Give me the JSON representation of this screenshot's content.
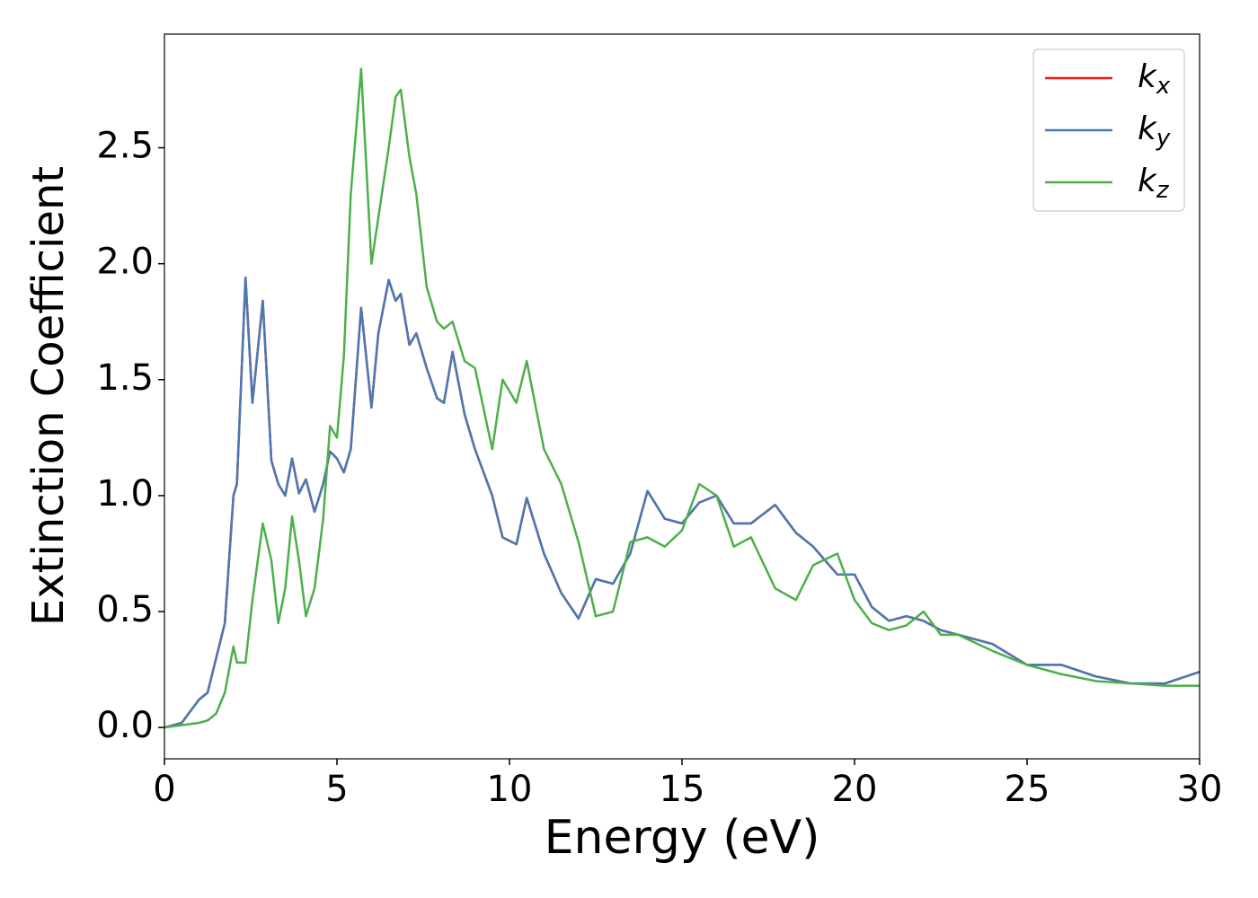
{
  "chart_data": {
    "type": "line",
    "xlabel": "Energy (eV)",
    "ylabel": "Extinction Coefficient",
    "x": [
      0,
      0.5,
      1,
      1.25,
      1.5,
      1.75,
      2,
      2.1,
      2.35,
      2.55,
      2.85,
      3.1,
      3.3,
      3.5,
      3.7,
      3.9,
      4.1,
      4.35,
      4.6,
      4.8,
      5,
      5.2,
      5.4,
      5.7,
      6,
      6.2,
      6.5,
      6.7,
      6.85,
      7.1,
      7.3,
      7.6,
      7.9,
      8.1,
      8.35,
      8.7,
      9,
      9.5,
      9.8,
      10.2,
      10.5,
      11,
      11.5,
      12,
      12.5,
      13,
      13.5,
      14,
      14.5,
      15,
      15.5,
      16,
      16.5,
      17,
      17.7,
      18.3,
      18.8,
      19.5,
      20,
      20.5,
      21,
      21.5,
      22,
      22.5,
      23,
      24,
      25,
      26,
      27,
      28,
      29,
      30
    ],
    "series": [
      {
        "name": "k_x",
        "color": "#e41a1c",
        "values": [
          0,
          0.02,
          0.12,
          0.15,
          0.3,
          0.45,
          1.0,
          1.05,
          1.94,
          1.4,
          1.84,
          1.15,
          1.05,
          1.0,
          1.16,
          1.01,
          1.07,
          0.93,
          1.05,
          1.19,
          1.16,
          1.1,
          1.2,
          1.81,
          1.38,
          1.7,
          1.93,
          1.84,
          1.87,
          1.65,
          1.7,
          1.55,
          1.42,
          1.4,
          1.62,
          1.35,
          1.2,
          1.0,
          0.82,
          0.79,
          0.99,
          0.75,
          0.58,
          0.47,
          0.64,
          0.62,
          0.75,
          1.02,
          0.9,
          0.88,
          0.97,
          1.0,
          0.88,
          0.88,
          0.96,
          0.84,
          0.78,
          0.66,
          0.66,
          0.52,
          0.46,
          0.48,
          0.46,
          0.42,
          0.4,
          0.36,
          0.27,
          0.27,
          0.22,
          0.19,
          0.19,
          0.24
        ]
      },
      {
        "name": "k_y",
        "color": "#4a78b3",
        "values": [
          0,
          0.02,
          0.12,
          0.15,
          0.3,
          0.45,
          1.0,
          1.05,
          1.94,
          1.4,
          1.84,
          1.15,
          1.05,
          1.0,
          1.16,
          1.01,
          1.07,
          0.93,
          1.05,
          1.19,
          1.16,
          1.1,
          1.2,
          1.81,
          1.38,
          1.7,
          1.93,
          1.84,
          1.87,
          1.65,
          1.7,
          1.55,
          1.42,
          1.4,
          1.62,
          1.35,
          1.2,
          1.0,
          0.82,
          0.79,
          0.99,
          0.75,
          0.58,
          0.47,
          0.64,
          0.62,
          0.75,
          1.02,
          0.9,
          0.88,
          0.97,
          1.0,
          0.88,
          0.88,
          0.96,
          0.84,
          0.78,
          0.66,
          0.66,
          0.52,
          0.46,
          0.48,
          0.46,
          0.42,
          0.4,
          0.36,
          0.27,
          0.27,
          0.22,
          0.19,
          0.19,
          0.24
        ]
      },
      {
        "name": "k_z",
        "color": "#4daf4a",
        "values": [
          0,
          0.01,
          0.02,
          0.03,
          0.06,
          0.15,
          0.35,
          0.28,
          0.28,
          0.55,
          0.88,
          0.72,
          0.45,
          0.6,
          0.91,
          0.72,
          0.48,
          0.6,
          0.9,
          1.3,
          1.25,
          1.6,
          2.3,
          2.84,
          2.0,
          2.2,
          2.5,
          2.72,
          2.75,
          2.46,
          2.3,
          1.9,
          1.75,
          1.72,
          1.75,
          1.58,
          1.55,
          1.2,
          1.5,
          1.4,
          1.58,
          1.2,
          1.05,
          0.8,
          0.48,
          0.5,
          0.8,
          0.82,
          0.78,
          0.85,
          1.05,
          1.0,
          0.78,
          0.82,
          0.6,
          0.55,
          0.7,
          0.75,
          0.55,
          0.45,
          0.42,
          0.44,
          0.5,
          0.4,
          0.4,
          0.33,
          0.27,
          0.23,
          0.2,
          0.19,
          0.18,
          0.18
        ]
      }
    ],
    "xlim": [
      0,
      30
    ],
    "xticks": [
      0,
      5,
      10,
      15,
      20,
      25,
      30
    ],
    "ylim": [
      -0.135,
      2.99
    ],
    "yticks": [
      {
        "value": 0,
        "label": "0.0"
      },
      {
        "value": 0.5,
        "label": "0.5"
      },
      {
        "value": 1,
        "label": "1.0"
      },
      {
        "value": 1.5,
        "label": "1.5"
      },
      {
        "value": 2,
        "label": "2.0"
      },
      {
        "value": 2.5,
        "label": "2.5"
      }
    ],
    "grid": false,
    "legend": "upper right"
  }
}
